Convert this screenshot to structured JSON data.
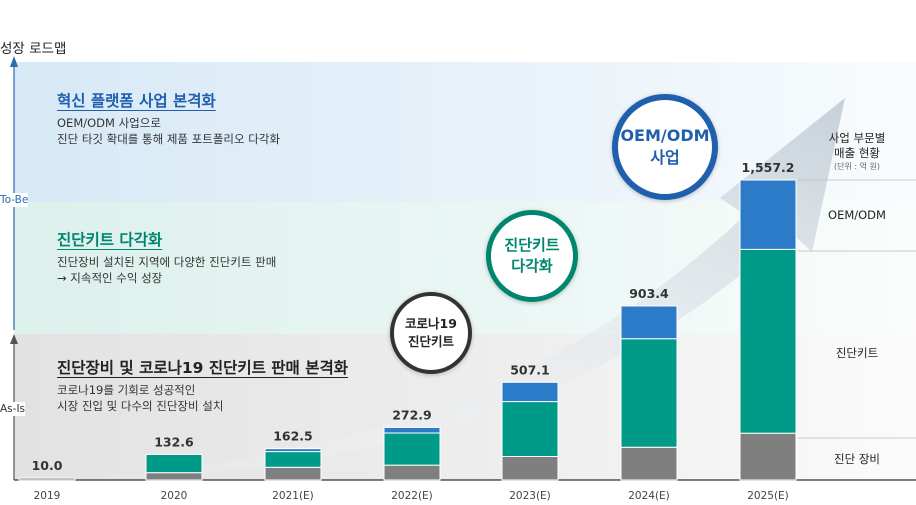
{
  "header": {
    "title": "성장 로드맵"
  },
  "phases": {
    "to_be": "To-Be",
    "as_is": "As-Is"
  },
  "bands": [
    {
      "title": "혁신 플랫폼 사업 본격화",
      "lines": [
        "OEM/ODM 사업으로",
        "진단 타깃 확대를 통해 제품 포트폴리오 다각화"
      ],
      "title_color": "#1f5fae"
    },
    {
      "title": "진단키트 다각화",
      "lines": [
        "진단장비 설치된 지역에 다양한 진단키트 판매",
        "→ 지속적인 수익 성장"
      ],
      "title_color": "#00866f"
    },
    {
      "title": "진단장비 및 코로나19 진단키트 판매 본격화",
      "lines": [
        "코로나19를 기회로 성공적인",
        "시장 진입 및 다수의 진단장비 설치"
      ],
      "title_color": "#222222"
    }
  ],
  "circles": [
    {
      "lines": [
        "OEM/ODM",
        "사업"
      ],
      "color": "#1f5fae"
    },
    {
      "lines": [
        "진단키트",
        "다각화"
      ],
      "color": "#00866f"
    },
    {
      "lines": [
        "코로나19",
        "진단키트"
      ],
      "color": "#333333"
    }
  ],
  "legend": {
    "title_lines": [
      "사업 부문별",
      "매출 현황"
    ],
    "unit": "(단위 : 억 원)",
    "segments": [
      "OEM/ODM",
      "진단키트",
      "진단 장비"
    ]
  },
  "chart_data": {
    "type": "bar",
    "stacked": true,
    "categories": [
      "2019",
      "2020",
      "2021(E)",
      "2022(E)",
      "2023(E)",
      "2024(E)",
      "2025(E)"
    ],
    "totals": [
      10.0,
      132.6,
      162.5,
      272.9,
      507.1,
      903.4,
      1557.2
    ],
    "total_labels": [
      "10.0",
      "132.6",
      "162.5",
      "272.9",
      "507.1",
      "903.4",
      "1,557.2"
    ],
    "series": [
      {
        "name": "진단 장비",
        "color": "#7f7f7f",
        "values": [
          10,
          38,
          66,
          77,
          122,
          170,
          243
        ]
      },
      {
        "name": "진단키트",
        "color": "#009b88",
        "values": [
          0,
          94.6,
          81.5,
          166.9,
          285.1,
          563.4,
          954.2
        ]
      },
      {
        "name": "OEM/ODM",
        "color": "#2b7bc8",
        "values": [
          0,
          0,
          15,
          29,
          100,
          170,
          360
        ]
      }
    ],
    "ylim": [
      0,
      1557.2
    ],
    "xlabel": "",
    "ylabel": "",
    "legend": "right",
    "grid": false
  }
}
